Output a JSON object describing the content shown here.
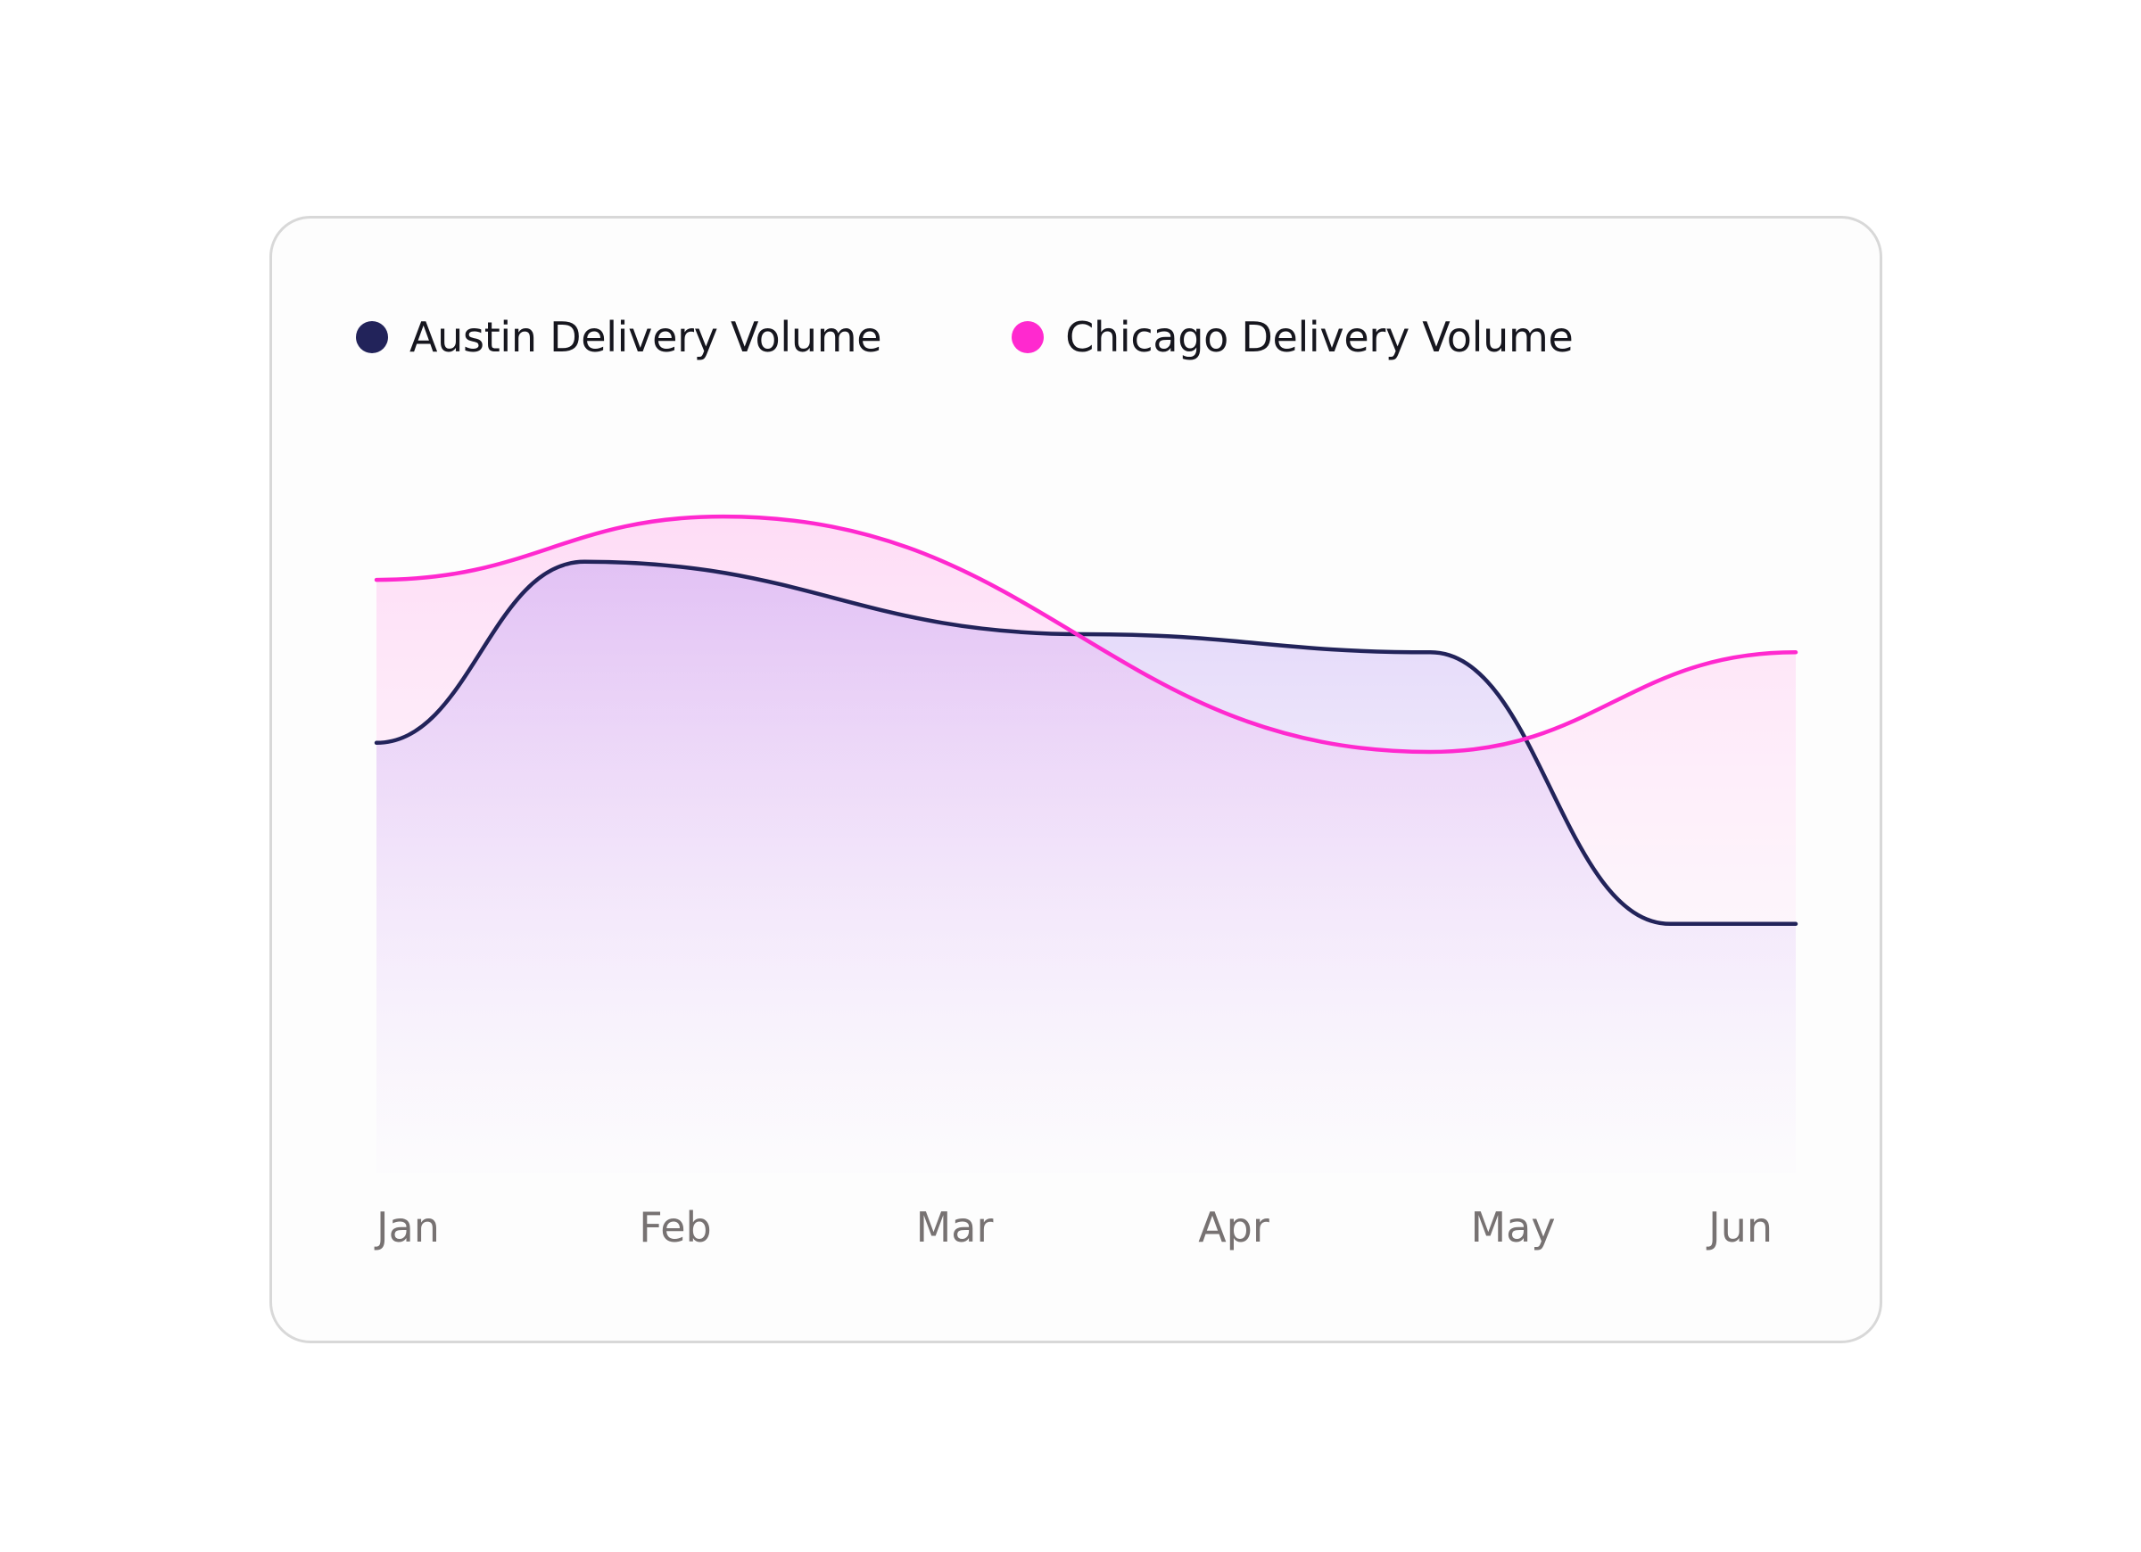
{
  "chart_data": {
    "type": "area",
    "title": "",
    "xlabel": "",
    "ylabel": "",
    "categories": [
      "Jan",
      "Feb",
      "Mar",
      "Apr",
      "May",
      "Jun"
    ],
    "ylim": [
      0,
      100
    ],
    "grid": false,
    "legend_position": "top-left",
    "series": [
      {
        "name": "Austin Delivery Volume",
        "color": "#22235a",
        "x": [
          0,
          0.78,
          2.65,
          3.95,
          4.85
        ],
        "values": [
          48,
          68,
          60,
          58,
          28
        ]
      },
      {
        "name": "Chicago Delivery Volume",
        "color": "#ff29cf",
        "x": [
          0,
          1.3,
          3.95,
          5.32
        ],
        "values": [
          66,
          73,
          47,
          58
        ]
      }
    ]
  }
}
